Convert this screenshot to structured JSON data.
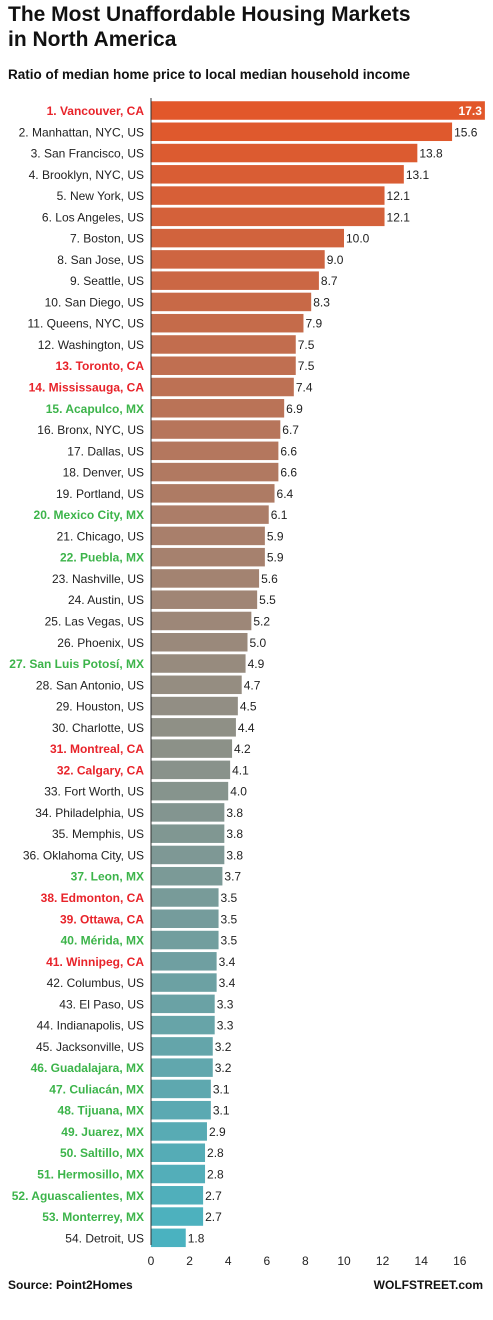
{
  "header": {
    "title_line1": "The Most Unaffordable Housing Markets",
    "title_line2": "in North America",
    "subtitle": "Ratio of median home price to local median household income"
  },
  "footer": {
    "source": "Source: Point2Homes",
    "brand": "WOLFSTREET.com"
  },
  "colors": {
    "canada_label": "#e8232a",
    "mexico_label": "#3cb44a",
    "us_label": "#222222",
    "bar_top": "#e2572a",
    "bar_bottom": "#4ab2c0"
  },
  "chart_data": {
    "type": "bar",
    "orientation": "horizontal",
    "xlim": [
      0,
      18
    ],
    "xticks": [
      0,
      2,
      4,
      6,
      8,
      10,
      12,
      14,
      16
    ],
    "grid": false,
    "legend": "none",
    "categories": [
      {
        "label": "1. Vancouver, CA",
        "value": 17.3,
        "country": "CA"
      },
      {
        "label": "2. Manhattan, NYC, US",
        "value": 15.6,
        "country": "US"
      },
      {
        "label": "3. San Francisco, US",
        "value": 13.8,
        "country": "US"
      },
      {
        "label": "4. Brooklyn, NYC, US",
        "value": 13.1,
        "country": "US"
      },
      {
        "label": "5. New York, US",
        "value": 12.1,
        "country": "US"
      },
      {
        "label": "6. Los Angeles, US",
        "value": 12.1,
        "country": "US"
      },
      {
        "label": "7. Boston, US",
        "value": 10.0,
        "country": "US"
      },
      {
        "label": "8. San Jose, US",
        "value": 9.0,
        "country": "US"
      },
      {
        "label": "9. Seattle, US",
        "value": 8.7,
        "country": "US"
      },
      {
        "label": "10. San Diego, US",
        "value": 8.3,
        "country": "US"
      },
      {
        "label": "11. Queens, NYC, US",
        "value": 7.9,
        "country": "US"
      },
      {
        "label": "12. Washington, US",
        "value": 7.5,
        "country": "US"
      },
      {
        "label": "13. Toronto, CA",
        "value": 7.5,
        "country": "CA"
      },
      {
        "label": "14. Mississauga, CA",
        "value": 7.4,
        "country": "CA"
      },
      {
        "label": "15. Acapulco, MX",
        "value": 6.9,
        "country": "MX"
      },
      {
        "label": "16. Bronx, NYC, US",
        "value": 6.7,
        "country": "US"
      },
      {
        "label": "17. Dallas, US",
        "value": 6.6,
        "country": "US"
      },
      {
        "label": "18. Denver, US",
        "value": 6.6,
        "country": "US"
      },
      {
        "label": "19. Portland, US",
        "value": 6.4,
        "country": "US"
      },
      {
        "label": "20. Mexico City, MX",
        "value": 6.1,
        "country": "MX"
      },
      {
        "label": "21. Chicago, US",
        "value": 5.9,
        "country": "US"
      },
      {
        "label": "22. Puebla, MX",
        "value": 5.9,
        "country": "MX"
      },
      {
        "label": "23. Nashville, US",
        "value": 5.6,
        "country": "US"
      },
      {
        "label": "24. Austin, US",
        "value": 5.5,
        "country": "US"
      },
      {
        "label": "25. Las Vegas, US",
        "value": 5.2,
        "country": "US"
      },
      {
        "label": "26. Phoenix, US",
        "value": 5.0,
        "country": "US"
      },
      {
        "label": "27. San Luis Potosí, MX",
        "value": 4.9,
        "country": "MX"
      },
      {
        "label": "28. San Antonio, US",
        "value": 4.7,
        "country": "US"
      },
      {
        "label": "29. Houston, US",
        "value": 4.5,
        "country": "US"
      },
      {
        "label": "30. Charlotte, US",
        "value": 4.4,
        "country": "US"
      },
      {
        "label": "31. Montreal, CA",
        "value": 4.2,
        "country": "CA"
      },
      {
        "label": "32. Calgary, CA",
        "value": 4.1,
        "country": "CA"
      },
      {
        "label": "33. Fort Worth, US",
        "value": 4.0,
        "country": "US"
      },
      {
        "label": "34. Philadelphia, US",
        "value": 3.8,
        "country": "US"
      },
      {
        "label": "35. Memphis, US",
        "value": 3.8,
        "country": "US"
      },
      {
        "label": "36. Oklahoma City, US",
        "value": 3.8,
        "country": "US"
      },
      {
        "label": "37. Leon, MX",
        "value": 3.7,
        "country": "MX"
      },
      {
        "label": "38. Edmonton, CA",
        "value": 3.5,
        "country": "CA"
      },
      {
        "label": "39. Ottawa, CA",
        "value": 3.5,
        "country": "CA"
      },
      {
        "label": "40. Mérida, MX",
        "value": 3.5,
        "country": "MX"
      },
      {
        "label": "41. Winnipeg, CA",
        "value": 3.4,
        "country": "CA"
      },
      {
        "label": "42. Columbus, US",
        "value": 3.4,
        "country": "US"
      },
      {
        "label": "43. El Paso, US",
        "value": 3.3,
        "country": "US"
      },
      {
        "label": "44. Indianapolis, US",
        "value": 3.3,
        "country": "US"
      },
      {
        "label": "45. Jacksonville, US",
        "value": 3.2,
        "country": "US"
      },
      {
        "label": "46. Guadalajara, MX",
        "value": 3.2,
        "country": "MX"
      },
      {
        "label": "47. Culiacán, MX",
        "value": 3.1,
        "country": "MX"
      },
      {
        "label": "48. Tijuana, MX",
        "value": 3.1,
        "country": "MX"
      },
      {
        "label": "49. Juarez, MX",
        "value": 2.9,
        "country": "MX"
      },
      {
        "label": "50. Saltillo, MX",
        "value": 2.8,
        "country": "MX"
      },
      {
        "label": "51. Hermosillo, MX",
        "value": 2.8,
        "country": "MX"
      },
      {
        "label": "52. Aguascalientes, MX",
        "value": 2.7,
        "country": "MX"
      },
      {
        "label": "53. Monterrey, MX",
        "value": 2.7,
        "country": "MX"
      },
      {
        "label": "54. Detroit, US",
        "value": 1.8,
        "country": "US"
      }
    ]
  }
}
